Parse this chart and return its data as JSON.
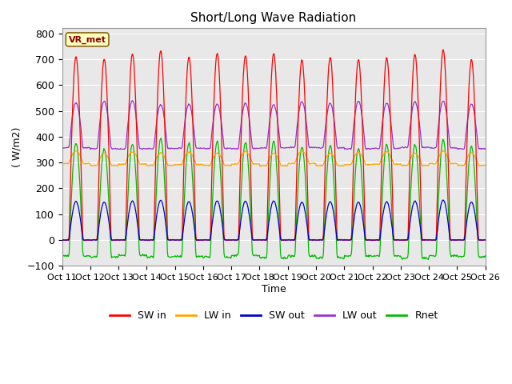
{
  "title": "Short/Long Wave Radiation",
  "xlabel": "Time",
  "ylabel": "( W/m2)",
  "ylim": [
    -100,
    820
  ],
  "site_label": "VR_met",
  "legend_labels": [
    "SW in",
    "LW in",
    "SW out",
    "LW out",
    "Rnet"
  ],
  "colors": {
    "SW_in": "#ff0000",
    "LW_in": "#ffa500",
    "SW_out": "#0000cc",
    "LW_out": "#9932cc",
    "Rnet": "#00bb00"
  },
  "x_tick_labels": [
    "Oct 11",
    "Oct 12",
    "Oct 13",
    "Oct 14",
    "Oct 15",
    "Oct 16",
    "Oct 17",
    "Oct 18",
    "Oct 19",
    "Oct 20",
    "Oct 21",
    "Oct 22",
    "Oct 23",
    "Oct 24",
    "Oct 25",
    "Oct 26"
  ],
  "num_days": 15,
  "pts_per_day": 48,
  "background_color": "#e8e8e8",
  "grid_color": "#ffffff",
  "fig_bg": "#ffffff"
}
